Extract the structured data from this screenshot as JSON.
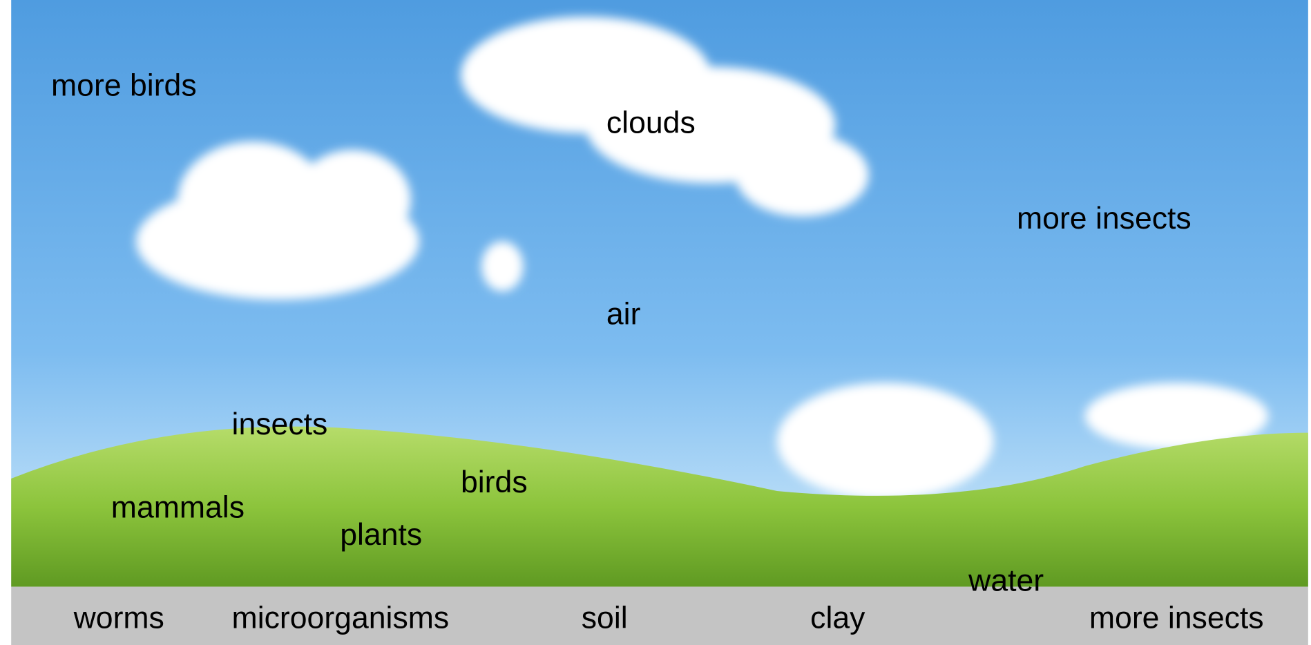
{
  "labels": [
    "more birds",
    "clouds",
    "more insects",
    "air",
    "insects",
    "birds",
    "mammals",
    "plants",
    "water"
  ],
  "ground_labels": [
    "worms",
    "microorganisms",
    "soil",
    "clay",
    "more insects"
  ]
}
